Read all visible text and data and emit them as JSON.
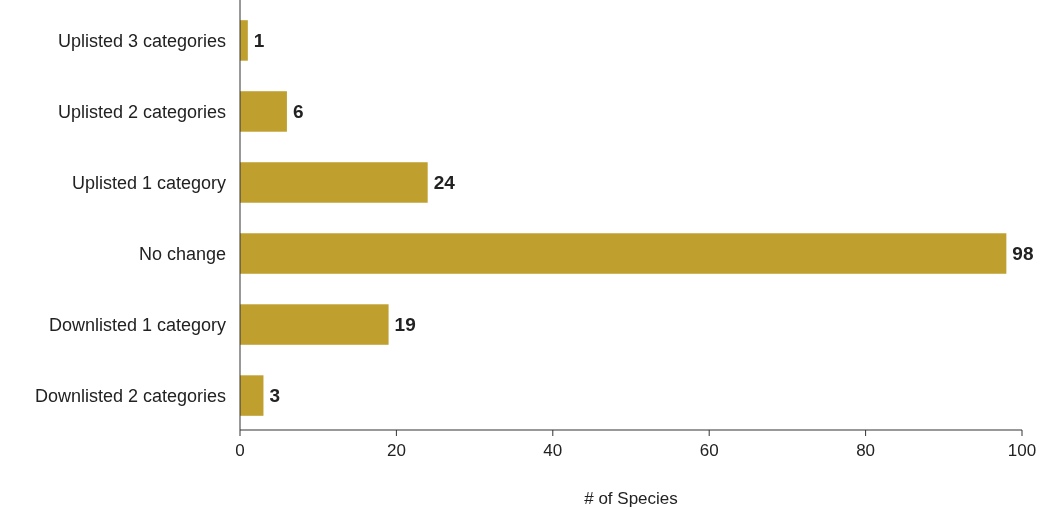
{
  "chart_data": {
    "type": "bar",
    "orientation": "horizontal",
    "xlabel": "# of Species",
    "categories": [
      "Uplisted 3 categories",
      "Uplisted 2 categories",
      "Uplisted 1 category",
      "No change",
      "Downlisted 1 category",
      "Downlisted 2 categories"
    ],
    "values": [
      1,
      6,
      24,
      98,
      19,
      3
    ],
    "color": "#bf9f2e",
    "data_labels": true,
    "xlim": [
      0,
      100
    ],
    "xticks": [
      0,
      20,
      40,
      60,
      80,
      100
    ],
    "grid": false
  }
}
